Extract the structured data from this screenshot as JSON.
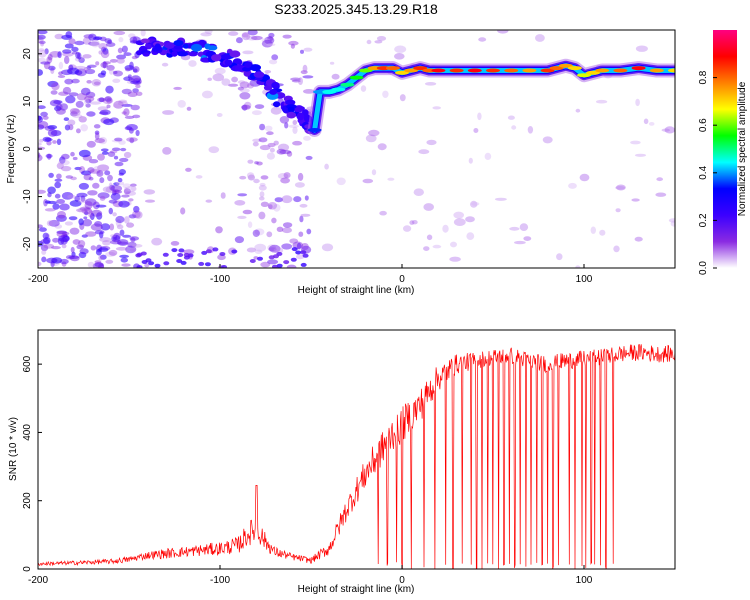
{
  "figure_title": "S233.2025.345.13.29.R18",
  "chart_data": [
    {
      "type": "heatmap",
      "title": "S233.2025.345.13.29.R18",
      "xlabel": "Height of straight line (km)",
      "ylabel": "Frequency (Hz)",
      "xlim": [
        -200,
        150
      ],
      "ylim": [
        -25,
        25
      ],
      "xticks": [
        -200,
        -100,
        0,
        100
      ],
      "xtick_labels": [
        "-200",
        "-100",
        "0",
        "100"
      ],
      "yticks": [
        -20,
        -10,
        0,
        10,
        20
      ],
      "ytick_labels": [
        "-20",
        "-10",
        "0",
        "10",
        "20"
      ],
      "colorbar": {
        "label": "Normalized spectral amplitude",
        "range": [
          0,
          1
        ],
        "ticks": [
          0,
          0.2,
          0.4,
          0.6,
          0.8
        ],
        "tick_labels": [
          "0.0",
          "0.2",
          "0.4",
          "0.6",
          "0.8"
        ],
        "colormap": [
          "#ffffff",
          "#8a2be2",
          "#3b00ff",
          "#0000ff",
          "#00ffff",
          "#00ff00",
          "#ffff00",
          "#ff8000",
          "#ff0000",
          "#ff0080"
        ]
      },
      "ridge": {
        "description_free": true,
        "x": [
          -48,
          -45,
          -40,
          -35,
          -30,
          -25,
          -20,
          -15,
          -10,
          -5,
          0,
          5,
          10,
          15,
          20,
          30,
          40,
          50,
          60,
          70,
          80,
          85,
          90,
          95,
          100,
          105,
          110,
          120,
          130,
          140,
          150
        ],
        "y": [
          4,
          12,
          12,
          12.5,
          13.5,
          15,
          16.5,
          17,
          17,
          17,
          16,
          16.5,
          17,
          16.5,
          16.5,
          16.5,
          16.5,
          16.5,
          16.5,
          16.5,
          16.5,
          17,
          17.5,
          17,
          15.5,
          16,
          16.5,
          16.5,
          17,
          16.5,
          16.5
        ],
        "amplitude": [
          0.35,
          0.4,
          0.45,
          0.45,
          0.5,
          0.55,
          0.6,
          0.75,
          0.85,
          0.8,
          0.7,
          0.75,
          0.85,
          0.8,
          0.9,
          0.85,
          0.9,
          0.85,
          0.8,
          0.75,
          0.85,
          0.8,
          0.75,
          0.7,
          0.65,
          0.7,
          0.75,
          0.8,
          0.9,
          0.75,
          0.7
        ]
      },
      "diagonal_feature": {
        "x": [
          -145,
          -135,
          -125,
          -115,
          -105,
          -95,
          -85,
          -75,
          -65,
          -55,
          -48
        ],
        "y": [
          21,
          22,
          21,
          21.5,
          20,
          19,
          17,
          14,
          10,
          7,
          4
        ],
        "amplitude": [
          0.25,
          0.3,
          0.3,
          0.35,
          0.3,
          0.28,
          0.3,
          0.35,
          0.3,
          0.25,
          0.3
        ]
      }
    },
    {
      "type": "line",
      "title": "",
      "xlabel": "Height of straight line (km)",
      "ylabel": "SNR (10 * v/v)",
      "color": "#ff0000",
      "xlim": [
        -200,
        150
      ],
      "ylim": [
        0,
        700
      ],
      "xticks": [
        -200,
        -100,
        0,
        100
      ],
      "xtick_labels": [
        "-200",
        "-100",
        "0",
        "100"
      ],
      "yticks": [
        0,
        200,
        400,
        600
      ],
      "ytick_labels": [
        "0",
        "200",
        "400",
        "600"
      ],
      "envelope": {
        "x": [
          -200,
          -180,
          -160,
          -150,
          -140,
          -130,
          -120,
          -110,
          -100,
          -90,
          -85,
          -80,
          -75,
          -70,
          -60,
          -50,
          -40,
          -35,
          -30,
          -25,
          -20,
          -15,
          -10,
          -5,
          0,
          10,
          20,
          30,
          40,
          50,
          60,
          70,
          80,
          90,
          100,
          110,
          120,
          130,
          140,
          150
        ],
        "base": [
          15,
          18,
          22,
          28,
          40,
          45,
          50,
          55,
          60,
          70,
          100,
          120,
          80,
          50,
          35,
          25,
          60,
          120,
          180,
          230,
          280,
          320,
          360,
          400,
          420,
          480,
          560,
          600,
          610,
          620,
          625,
          610,
          600,
          610,
          615,
          620,
          630,
          635,
          630,
          630
        ],
        "spread": [
          10,
          12,
          14,
          18,
          22,
          30,
          30,
          35,
          40,
          50,
          70,
          80,
          50,
          30,
          20,
          18,
          40,
          60,
          70,
          80,
          90,
          100,
          100,
          110,
          110,
          100,
          80,
          60,
          50,
          50,
          50,
          50,
          50,
          50,
          50,
          50,
          50,
          50,
          50,
          50
        ]
      },
      "dropouts_x": [
        -13,
        -8,
        -3,
        0,
        5,
        12,
        18,
        24,
        28,
        33,
        38,
        41,
        44,
        47,
        50,
        53,
        56,
        59,
        62,
        65,
        68,
        71,
        74,
        77,
        80,
        83,
        86,
        92,
        95,
        99,
        101,
        104,
        106,
        109,
        112,
        116
      ],
      "peak": {
        "x": -80,
        "value": 245
      }
    }
  ]
}
